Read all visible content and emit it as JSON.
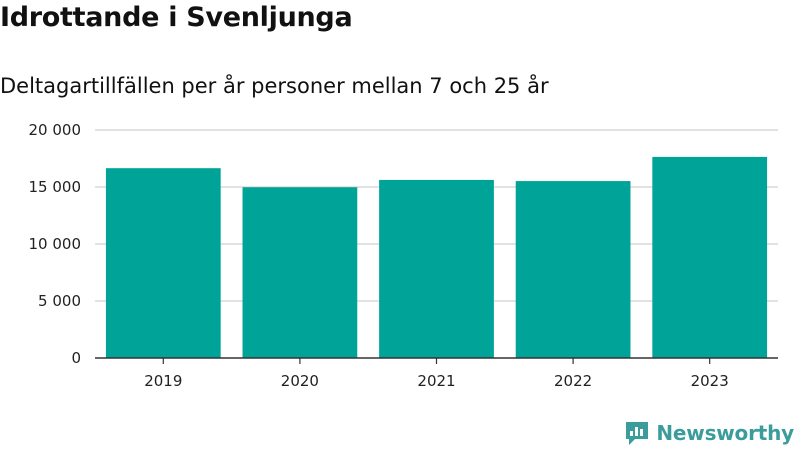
{
  "header": {
    "title": "Idrottande i Svenljunga",
    "subtitle": "Deltagartillfällen per år personer mellan 7 och 25 år"
  },
  "brand": {
    "name": "Newsworthy",
    "logo_icon": "newsworthy-logo-icon",
    "color": "#3b9c9c"
  },
  "colors": {
    "bar": "#00a397",
    "grid": "#d9d9d9",
    "axis": "#333333"
  },
  "chart_data": {
    "type": "bar",
    "categories": [
      "2019",
      "2020",
      "2021",
      "2022",
      "2023"
    ],
    "values": [
      16650,
      14980,
      15620,
      15520,
      17640
    ],
    "ylim": [
      0,
      20000
    ],
    "yticks": [
      0,
      5000,
      10000,
      15000,
      20000
    ],
    "ytick_labels": [
      "0",
      "5 000",
      "10 000",
      "15 000",
      "20 000"
    ],
    "grid": true,
    "legend": "none"
  }
}
